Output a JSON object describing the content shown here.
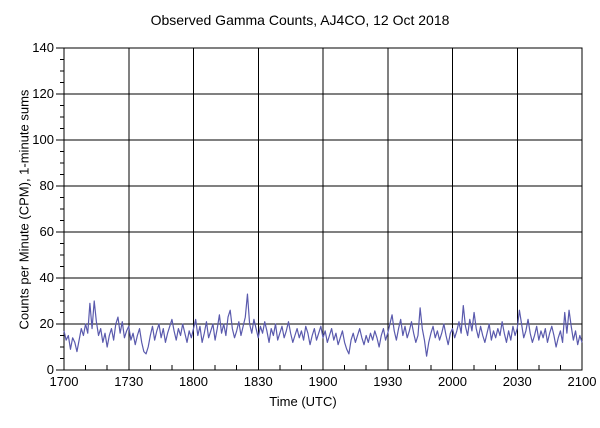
{
  "chart_data": {
    "type": "line",
    "title": "Observed Gamma Counts, AJ4CO, 12 Oct 2018",
    "xlabel": "Time (UTC)",
    "ylabel": "Counts per Minute (CPM), 1-minute sums",
    "x_tick_labels": [
      "1700",
      "1730",
      "1800",
      "1830",
      "1900",
      "1930",
      "2000",
      "2030",
      "2100"
    ],
    "x_range_minutes": [
      0,
      240
    ],
    "x_major_step_minutes": 30,
    "x_minor_step_minutes": 10,
    "y_ticks": [
      0,
      20,
      40,
      60,
      80,
      100,
      120,
      140
    ],
    "y_minor_step": 5,
    "ylim": [
      0,
      140
    ],
    "grid": true,
    "legend": "none",
    "line_color": "#5a5aad",
    "axis_color": "#000000",
    "background_color": "#ffffff",
    "series": [
      {
        "name": "Observed gamma counts, 1-minute sums",
        "start_time": "1700",
        "step_minutes": 1,
        "values": [
          17,
          13,
          15,
          9,
          14,
          12,
          8,
          13,
          18,
          15,
          20,
          16,
          29,
          18,
          30,
          21,
          15,
          18,
          12,
          16,
          10,
          15,
          18,
          13,
          20,
          23,
          16,
          21,
          14,
          17,
          19,
          13,
          16,
          11,
          15,
          18,
          12,
          8,
          7,
          10,
          15,
          19,
          13,
          17,
          20,
          14,
          18,
          12,
          16,
          19,
          22,
          17,
          13,
          18,
          15,
          20,
          16,
          12,
          17,
          14,
          18,
          22,
          15,
          19,
          12,
          16,
          21,
          14,
          17,
          20,
          13,
          18,
          24,
          16,
          20,
          15,
          23,
          26,
          18,
          14,
          17,
          21,
          15,
          19,
          23,
          33,
          20,
          16,
          22,
          18,
          14,
          19,
          16,
          21,
          17,
          12,
          18,
          15,
          20,
          13,
          16,
          19,
          14,
          17,
          21,
          16,
          12,
          15,
          18,
          14,
          17,
          13,
          19,
          16,
          11,
          15,
          18,
          13,
          16,
          19,
          14,
          17,
          12,
          15,
          18,
          13,
          16,
          11,
          14,
          17,
          12,
          9,
          7,
          13,
          16,
          12,
          15,
          18,
          14,
          11,
          15,
          12,
          16,
          13,
          17,
          14,
          10,
          15,
          18,
          13,
          16,
          20,
          24,
          17,
          13,
          18,
          22,
          15,
          19,
          14,
          17,
          21,
          16,
          12,
          15,
          27,
          18,
          13,
          6,
          12,
          16,
          19,
          14,
          17,
          13,
          16,
          20,
          15,
          11,
          16,
          18,
          14,
          17,
          21,
          16,
          28,
          19,
          15,
          22,
          17,
          25,
          18,
          14,
          19,
          15,
          12,
          16,
          20,
          13,
          17,
          14,
          18,
          15,
          21,
          16,
          12,
          17,
          13,
          19,
          15,
          18,
          26,
          20,
          14,
          17,
          22,
          16,
          12,
          15,
          19,
          13,
          17,
          14,
          18,
          12,
          16,
          19,
          15,
          10,
          14,
          17,
          12,
          25,
          16,
          26,
          19,
          13,
          17,
          11,
          15,
          12
        ]
      }
    ]
  }
}
